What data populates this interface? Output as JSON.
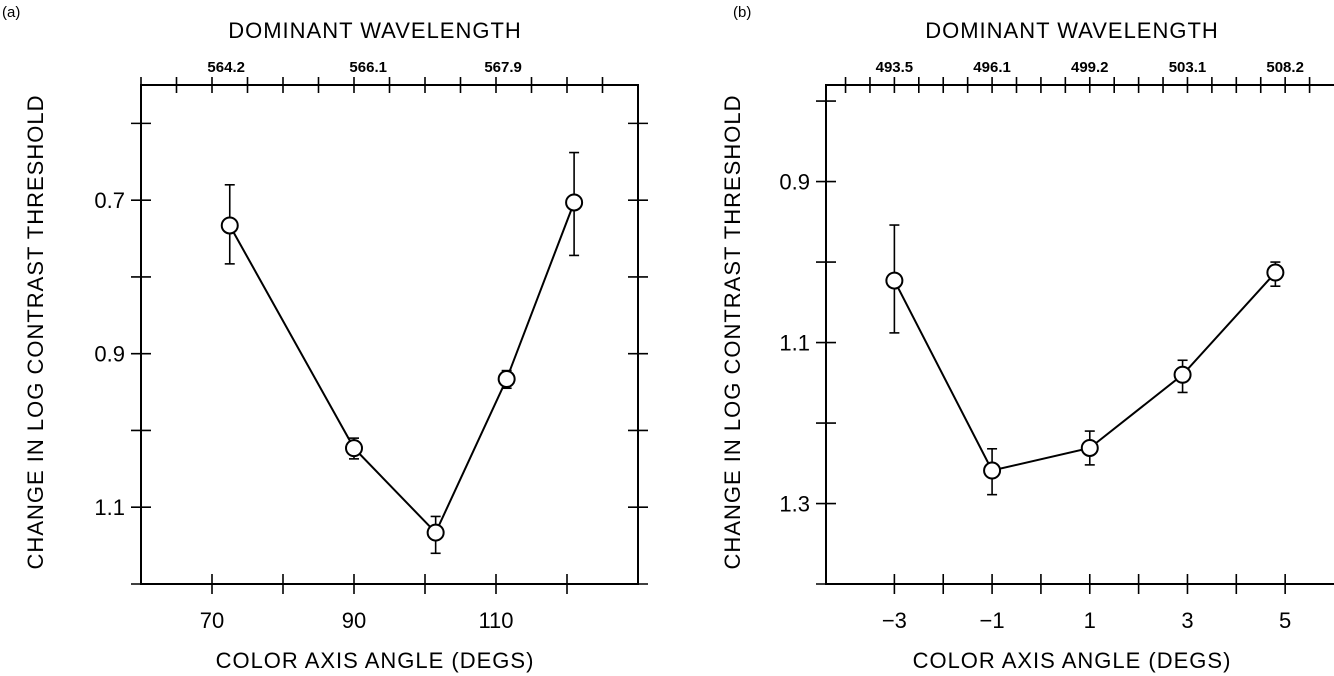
{
  "chart_data": [
    {
      "panel": "(a)",
      "type": "line",
      "xlabel": "COLOR AXIS ANGLE (DEGS)",
      "ylabel": "CHANGE IN LOG CONTRAST THRESHOLD",
      "top_axis_label": "DOMINANT WAVELENGTH",
      "xlim": [
        60,
        130
      ],
      "x_ticks": [
        70,
        80,
        90,
        100,
        110,
        120
      ],
      "x_tick_labels": [
        "70",
        "",
        "90",
        "",
        "110",
        ""
      ],
      "ylim": [
        0.55,
        1.2
      ],
      "y_inverted": true,
      "y_ticks": [
        0.6,
        0.7,
        0.8,
        0.9,
        1.0,
        1.1,
        1.2
      ],
      "y_tick_labels": [
        "",
        "0.7",
        "",
        "0.9",
        "",
        "1.1",
        ""
      ],
      "top_ticks": [
        60,
        65,
        70,
        75,
        80,
        85,
        90,
        95,
        100,
        105,
        110,
        115,
        120,
        125
      ],
      "top_tick_labels": [
        {
          "x": 72,
          "label": "564.2"
        },
        {
          "x": 92,
          "label": "566.1"
        },
        {
          "x": 111,
          "label": "567.9"
        }
      ],
      "grid": false,
      "series": [
        {
          "x": [
            72.5,
            90,
            101.5,
            111.5,
            121
          ],
          "y": [
            0.733,
            1.023,
            1.133,
            0.933,
            0.703
          ],
          "err_low": [
            0.68,
            1.01,
            1.112,
            0.922,
            0.638
          ],
          "err_high": [
            0.783,
            1.037,
            1.16,
            0.945,
            0.772
          ]
        }
      ]
    },
    {
      "panel": "(b)",
      "type": "line",
      "xlabel": "COLOR AXIS ANGLE (DEGS)",
      "ylabel": "CHANGE IN LOG CONTRAST THRESHOLD",
      "top_axis_label": "DOMINANT WAVELENGTH",
      "xlim": [
        -4.4,
        6
      ],
      "x_ticks": [
        -3,
        -2,
        -1,
        0,
        1,
        2,
        3,
        4,
        5
      ],
      "x_tick_labels": [
        "−3",
        "",
        "−1",
        "",
        "1",
        "",
        "3",
        "",
        "5"
      ],
      "ylim": [
        0.78,
        1.4
      ],
      "y_inverted": true,
      "y_ticks": [
        0.8,
        0.9,
        1.0,
        1.1,
        1.2,
        1.3,
        1.4
      ],
      "y_tick_labels": [
        "",
        "0.9",
        "",
        "1.1",
        "",
        "1.3",
        ""
      ],
      "top_ticks": [
        -4,
        -3.5,
        -3,
        -2.5,
        -2,
        -1.5,
        -1,
        -0.5,
        0,
        0.5,
        1,
        1.5,
        2,
        2.5,
        3,
        3.5,
        4,
        4.5,
        5,
        5.5
      ],
      "top_tick_labels": [
        {
          "x": -3,
          "label": "493.5"
        },
        {
          "x": -1,
          "label": "496.1"
        },
        {
          "x": 1,
          "label": "499.2"
        },
        {
          "x": 3,
          "label": "503.1"
        },
        {
          "x": 5,
          "label": "508.2"
        }
      ],
      "grid": false,
      "series": [
        {
          "x": [
            -3,
            -1,
            1,
            2.9,
            4.8
          ],
          "y": [
            1.023,
            1.259,
            1.231,
            1.14,
            1.013
          ],
          "err_low": [
            0.954,
            1.232,
            1.21,
            1.122,
            1.0
          ],
          "err_high": [
            1.088,
            1.289,
            1.252,
            1.162,
            1.03
          ]
        }
      ]
    }
  ]
}
